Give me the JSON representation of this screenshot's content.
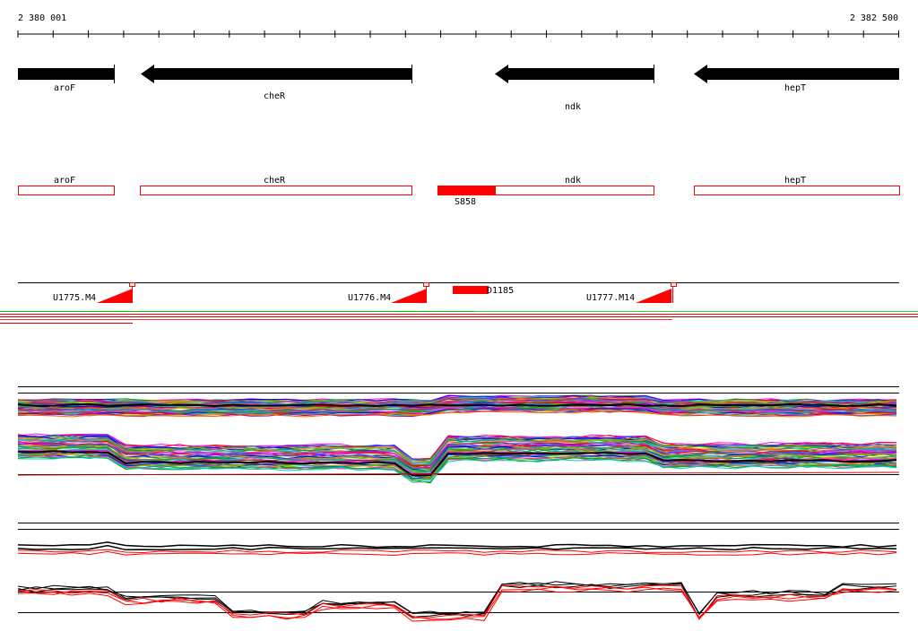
{
  "coordinates": {
    "start": "2 380 001",
    "end": "2 382 500"
  },
  "genes": [
    {
      "name": "aroF",
      "direction": "forward"
    },
    {
      "name": "cheR",
      "direction": "reverse"
    },
    {
      "name": "ndk",
      "direction": "reverse"
    },
    {
      "name": "hepT",
      "direction": "reverse"
    }
  ],
  "segment_label": "S858",
  "probes": [
    "U1775.M4",
    "U1776.M4",
    "U1777.M14"
  ],
  "deletion_label": "D1185",
  "colors": {
    "gene": "#000000",
    "annotation": "#ff0000",
    "axis": "#000000"
  },
  "tracks": [
    {
      "name": "expression-profiles-panel",
      "style": "multicolor"
    },
    {
      "name": "summary-profiles-panel",
      "style": "black-red"
    }
  ]
}
